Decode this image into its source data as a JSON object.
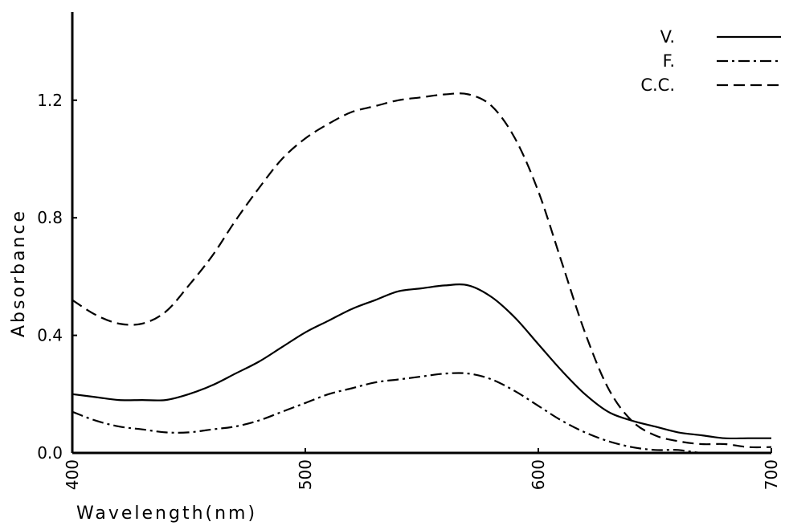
{
  "chart_data": {
    "type": "line",
    "title": "",
    "xlabel": "Wavelength(nm)",
    "ylabel": "Absorbance",
    "xlim": [
      400,
      700
    ],
    "ylim": [
      0.0,
      1.5
    ],
    "xticks": [
      "400",
      "500",
      "600",
      "700"
    ],
    "yticks": [
      "0.0",
      "0.4",
      "0.8",
      "1.2"
    ],
    "grid": false,
    "legend_position": "top-right",
    "x": [
      400,
      410,
      420,
      430,
      440,
      450,
      460,
      470,
      480,
      490,
      500,
      510,
      520,
      530,
      540,
      550,
      560,
      570,
      580,
      590,
      600,
      610,
      620,
      630,
      640,
      650,
      660,
      670,
      680,
      690,
      700
    ],
    "series": [
      {
        "name": "V.",
        "style": "solid",
        "values": [
          0.2,
          0.19,
          0.18,
          0.18,
          0.18,
          0.2,
          0.23,
          0.27,
          0.31,
          0.36,
          0.41,
          0.45,
          0.49,
          0.52,
          0.55,
          0.56,
          0.57,
          0.57,
          0.53,
          0.46,
          0.37,
          0.28,
          0.2,
          0.14,
          0.11,
          0.09,
          0.07,
          0.06,
          0.05,
          0.05,
          0.05
        ]
      },
      {
        "name": "F.",
        "style": "dash-dot",
        "values": [
          0.14,
          0.11,
          0.09,
          0.08,
          0.07,
          0.07,
          0.08,
          0.09,
          0.11,
          0.14,
          0.17,
          0.2,
          0.22,
          0.24,
          0.25,
          0.26,
          0.27,
          0.27,
          0.25,
          0.21,
          0.16,
          0.11,
          0.07,
          0.04,
          0.02,
          0.01,
          0.01,
          0.0,
          0.0,
          0.0,
          0.0
        ]
      },
      {
        "name": "C.C.",
        "style": "dashed",
        "values": [
          0.52,
          0.47,
          0.44,
          0.44,
          0.48,
          0.57,
          0.67,
          0.79,
          0.9,
          1.0,
          1.07,
          1.12,
          1.16,
          1.18,
          1.2,
          1.21,
          1.22,
          1.22,
          1.18,
          1.07,
          0.89,
          0.65,
          0.41,
          0.22,
          0.11,
          0.06,
          0.04,
          0.03,
          0.03,
          0.02,
          0.02
        ]
      }
    ]
  }
}
